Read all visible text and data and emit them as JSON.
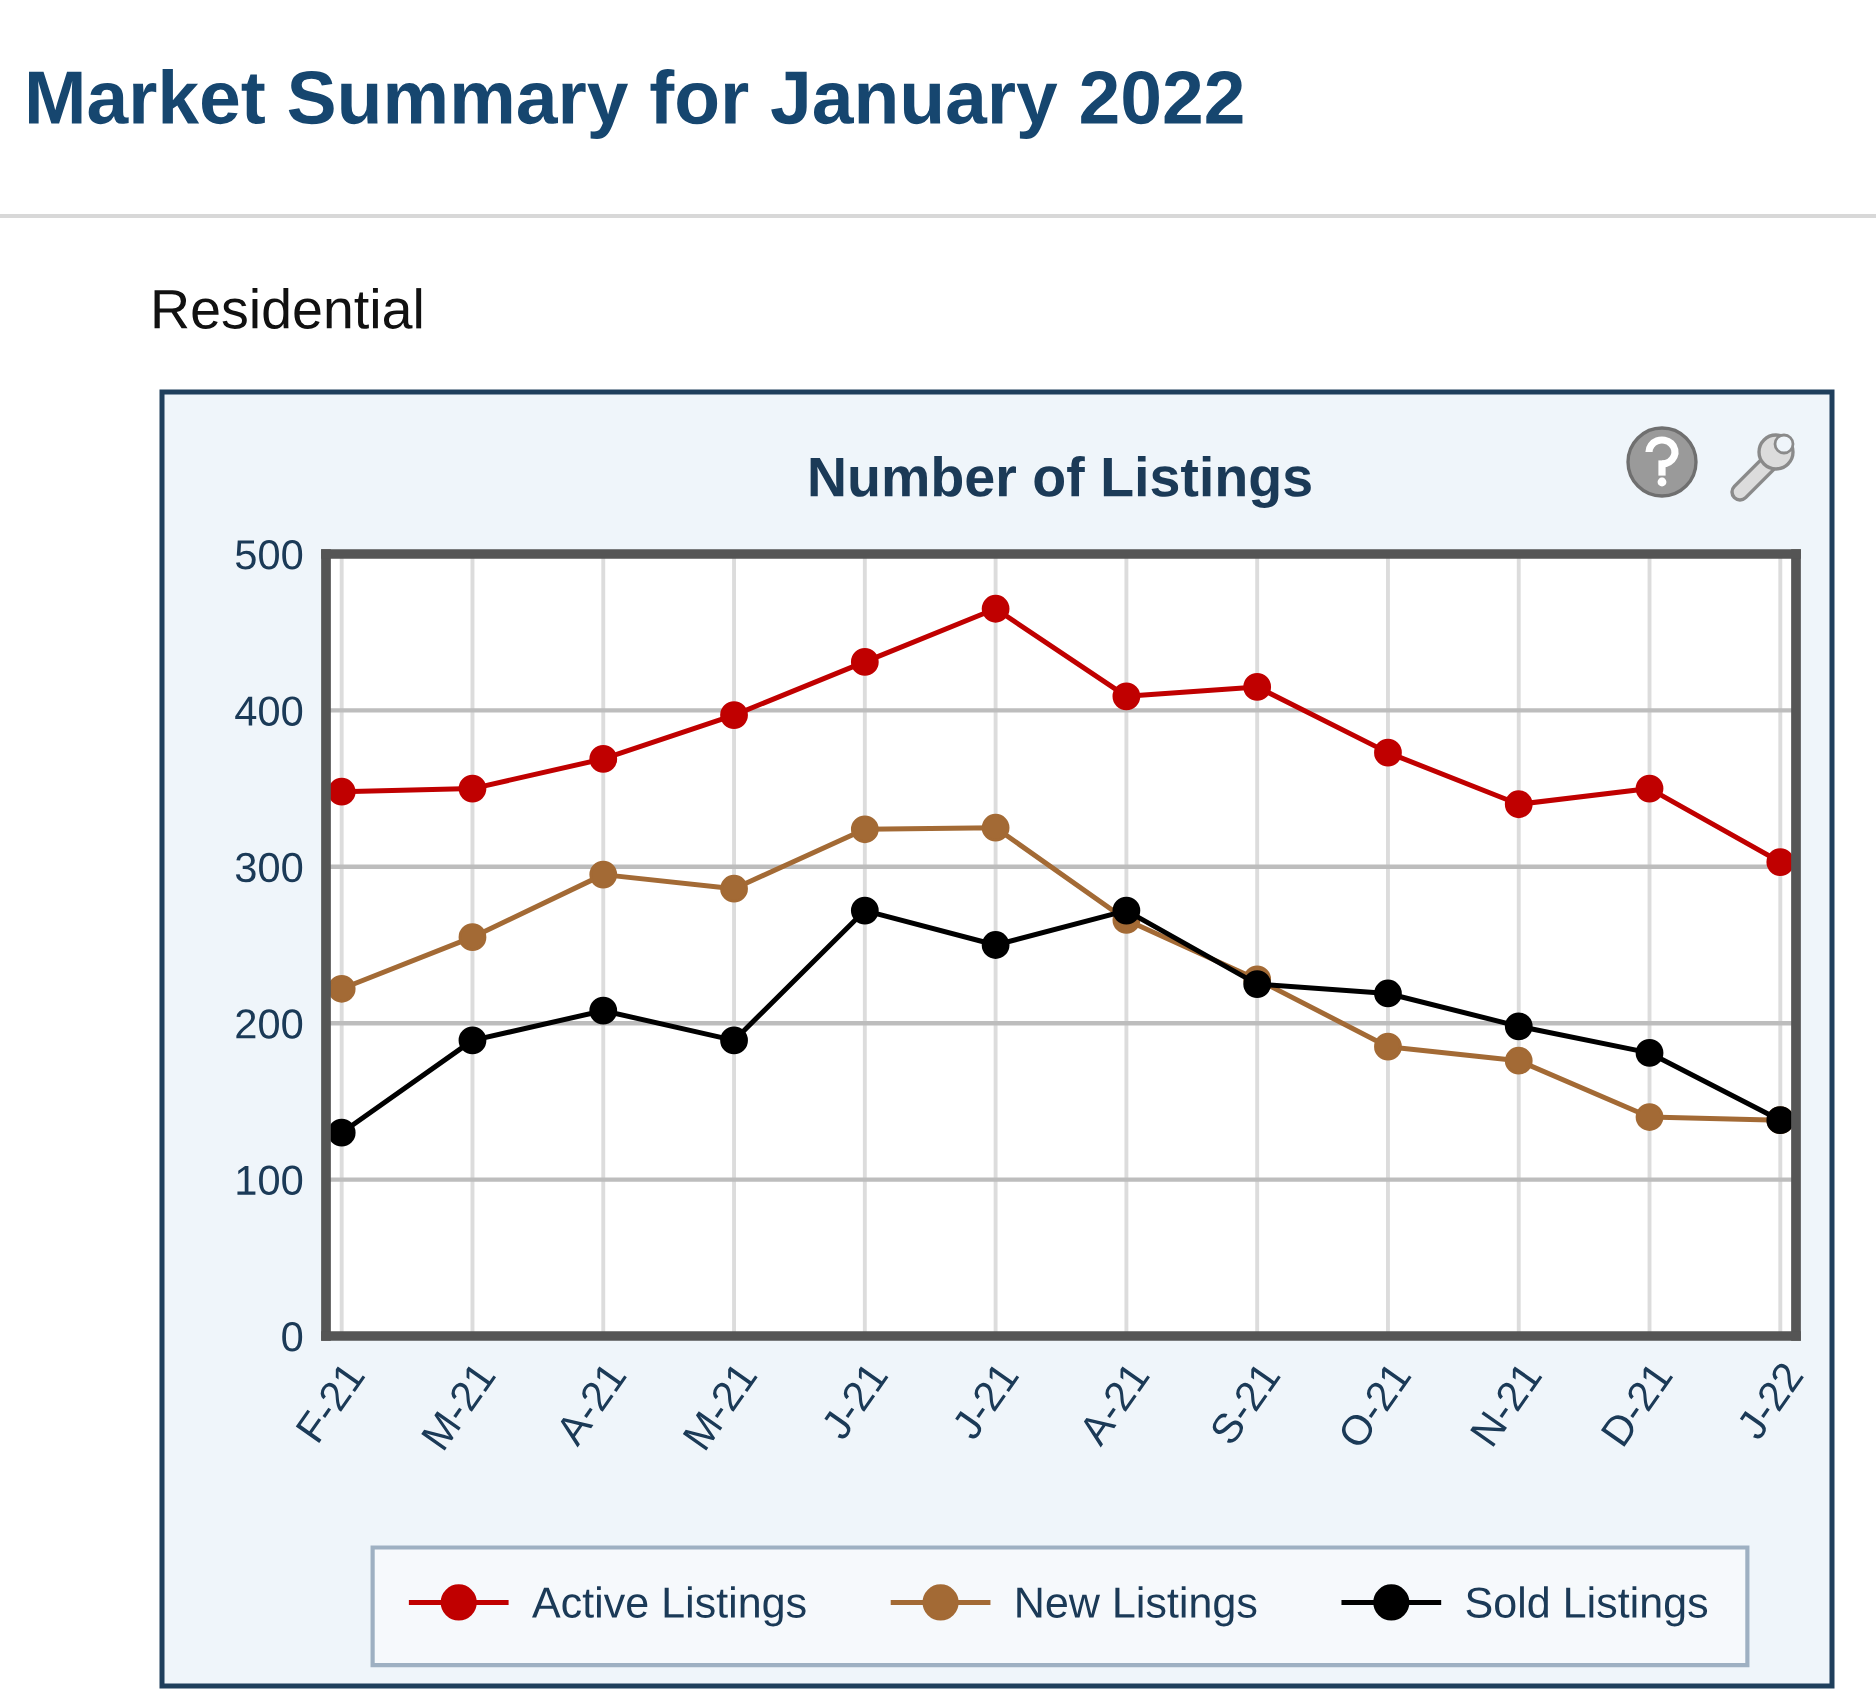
{
  "chart_data": {
    "type": "line",
    "title": "Number of Listings",
    "annotations": [
      "Market Summary for January 2022",
      "Residential"
    ],
    "categories": [
      "F-21",
      "M-21",
      "A-21",
      "M-21",
      "J-21",
      "J-21",
      "A-21",
      "S-21",
      "O-21",
      "N-21",
      "D-21",
      "J-22"
    ],
    "series": [
      {
        "name": "Active Listings",
        "color": "#c00000",
        "values": [
          348,
          350,
          369,
          397,
          431,
          465,
          409,
          415,
          373,
          340,
          350,
          303
        ]
      },
      {
        "name": "New Listings",
        "color": "#a36a35",
        "values": [
          222,
          255,
          295,
          286,
          324,
          325,
          266,
          228,
          185,
          176,
          140,
          138
        ]
      },
      {
        "name": "Sold Listings",
        "color": "#000000",
        "values": [
          130,
          189,
          208,
          189,
          272,
          250,
          272,
          225,
          219,
          198,
          181,
          138
        ]
      }
    ],
    "ylim": [
      0,
      500
    ],
    "yticks": [
      0,
      100,
      200,
      300,
      400,
      500
    ],
    "grid": true,
    "legend": "bottom",
    "marker": "circle",
    "line_style": "solid"
  }
}
